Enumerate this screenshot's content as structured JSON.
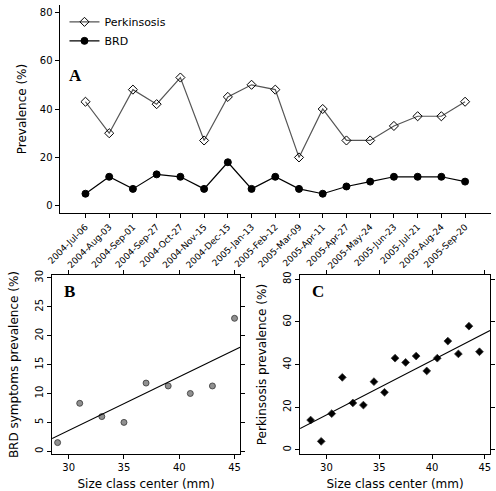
{
  "chart_data": [
    {
      "type": "line",
      "title": "A",
      "categories": [
        "2004-Jul-06",
        "2004-Aug-03",
        "2004-Sep-01",
        "2004-Sep-27",
        "2004-Oct-27",
        "2004-Nov-15",
        "2004-Dec-15",
        "2005-Jan-13",
        "2005-Feb-12",
        "2005-Mar-09",
        "2005-Apr-11",
        "2005-Apr-27",
        "2005-May-24",
        "2005-Jun-23",
        "2005-Jul-21",
        "2005-Aug-24",
        "2005-Sep-20"
      ],
      "series": [
        {
          "name": "Perkinsosis",
          "color": "#555555",
          "marker": "diamond-open",
          "values": [
            43,
            30,
            48,
            42,
            53,
            27,
            45,
            50,
            48,
            20,
            40,
            27,
            27,
            33,
            37,
            37,
            43
          ]
        },
        {
          "name": "BRD",
          "color": "#000000",
          "marker": "circle",
          "values": [
            5,
            12,
            7,
            13,
            12,
            7,
            18,
            7,
            12,
            7,
            5,
            8,
            10,
            12,
            12,
            12,
            10
          ]
        }
      ],
      "y_label": "Prevalence (%)",
      "ylim": [
        -3,
        83
      ],
      "yticks": [
        0,
        20,
        40,
        60,
        80
      ],
      "legend": "upper left",
      "grid": false
    },
    {
      "type": "scatter",
      "title": "B",
      "x_label": "Size class center (mm)",
      "y_label": "BRD symptoms prevalence (%)",
      "xlim": [
        28.5,
        45.5
      ],
      "xticks": [
        30,
        35,
        40,
        45
      ],
      "ylim": [
        -0.5,
        30.5
      ],
      "yticks": [
        0,
        5,
        10,
        15,
        20,
        25,
        30
      ],
      "series": [
        {
          "type": "scatter",
          "color": "#909090",
          "marker": "circle",
          "x": [
            29,
            31,
            33,
            35,
            37,
            39,
            41,
            43,
            45
          ],
          "values": [
            1.5,
            8.3,
            6,
            5,
            11.8,
            11.3,
            10,
            11.3,
            23
          ]
        },
        {
          "type": "line",
          "color": "#000000",
          "x": [
            28.5,
            45.5
          ],
          "values": [
            2.2,
            18
          ]
        }
      ],
      "grid": false
    },
    {
      "type": "scatter",
      "title": "C",
      "x_label": "Size class center (mm)",
      "y_label": "Perkinsosis prevalence (%)",
      "xlim": [
        27.5,
        45.5
      ],
      "xticks": [
        30,
        35,
        40,
        45
      ],
      "ylim": [
        -2,
        82
      ],
      "yticks": [
        0,
        20,
        40,
        60,
        80
      ],
      "series": [
        {
          "type": "scatter",
          "color": "#000000",
          "marker": "diamond",
          "x": [
            28.5,
            29.5,
            30.5,
            31.5,
            32.5,
            33.5,
            34.5,
            35.5,
            36.5,
            37.5,
            38.5,
            39.5,
            40.5,
            41.5,
            42.5,
            43.5,
            44.5
          ],
          "values": [
            14,
            4,
            17,
            34,
            22,
            21,
            32,
            27,
            43,
            41,
            44,
            37,
            43,
            51,
            45,
            58,
            46
          ]
        },
        {
          "type": "line",
          "color": "#000000",
          "x": [
            27.5,
            45.5
          ],
          "values": [
            10,
            56
          ]
        }
      ],
      "grid": false
    }
  ]
}
